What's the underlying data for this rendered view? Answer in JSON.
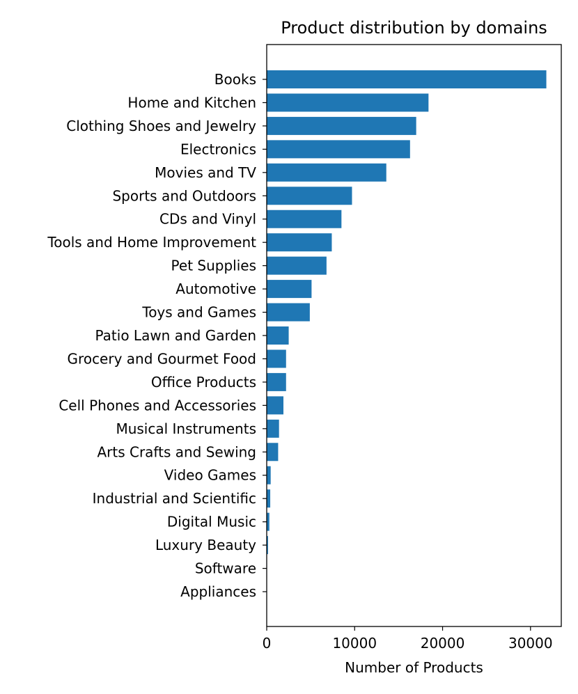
{
  "chart_data": {
    "type": "bar",
    "orientation": "horizontal",
    "title": "Product distribution by domains",
    "xlabel": "Number of Products",
    "ylabel": "",
    "xlim": [
      0,
      33500
    ],
    "x_ticks": [
      0,
      10000,
      20000,
      30000
    ],
    "grid": false,
    "bar_color": "#1f77b4",
    "categories": [
      "Books",
      "Home and Kitchen",
      "Clothing Shoes and Jewelry",
      "Electronics",
      "Movies and TV",
      "Sports and Outdoors",
      "CDs and Vinyl",
      "Tools and Home Improvement",
      "Pet Supplies",
      "Automotive",
      "Toys and Games",
      "Patio Lawn and Garden",
      "Grocery and Gourmet Food",
      "Office Products",
      "Cell Phones and Accessories",
      "Musical Instruments",
      "Arts Crafts and Sewing",
      "Video Games",
      "Industrial and Scientific",
      "Digital Music",
      "Luxury Beauty",
      "Software",
      "Appliances"
    ],
    "values": [
      31800,
      18400,
      17000,
      16300,
      13600,
      9700,
      8500,
      7400,
      6800,
      5100,
      4900,
      2500,
      2200,
      2200,
      1900,
      1400,
      1300,
      450,
      400,
      300,
      150,
      40,
      20
    ]
  }
}
